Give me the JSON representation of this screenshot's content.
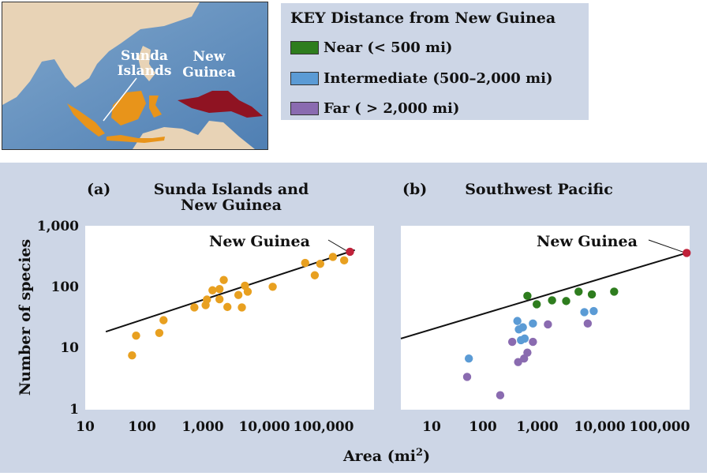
{
  "map": {
    "label_sunda": [
      "Sunda",
      "Islands"
    ],
    "label_newguinea": [
      "New",
      "Guinea"
    ]
  },
  "key": {
    "title": "KEY  Distance from New Guinea",
    "items": [
      {
        "label": "Near (< 500 mi)",
        "color": "#2e7d1e"
      },
      {
        "label": "Intermediate (500–2,000 mi)",
        "color": "#5b9bd5"
      },
      {
        "label": "Far ( > 2,000 mi)",
        "color": "#8a6bb0"
      }
    ]
  },
  "chart_data": [
    {
      "type": "scatter",
      "panel_letter": "(a)",
      "title": [
        "Sunda Islands and",
        "New Guinea"
      ],
      "xscale": "log",
      "yscale": "log",
      "xlim": [
        10,
        300000
      ],
      "ylim": [
        1,
        1000
      ],
      "x_ticks": [
        "10",
        "100",
        "1,000",
        "10,000",
        "100,000"
      ],
      "y_ticks": [
        "1",
        "10",
        "100",
        "1,000"
      ],
      "annotation": "New Guinea",
      "points_color": "#e8a020",
      "highlight_color": "#c0223a",
      "fit_line": [
        [
          22,
          22
        ],
        [
          300000,
          480
        ]
      ],
      "points": [
        [
          60,
          9
        ],
        [
          70,
          19
        ],
        [
          170,
          21
        ],
        [
          200,
          34
        ],
        [
          650,
          55
        ],
        [
          1000,
          60
        ],
        [
          1050,
          74
        ],
        [
          1300,
          105
        ],
        [
          1700,
          110
        ],
        [
          1700,
          75
        ],
        [
          2000,
          155
        ],
        [
          2300,
          56
        ],
        [
          3500,
          88
        ],
        [
          4000,
          55
        ],
        [
          4500,
          125
        ],
        [
          5000,
          100
        ],
        [
          13000,
          120
        ],
        [
          45000,
          295
        ],
        [
          65000,
          185
        ],
        [
          80000,
          285
        ],
        [
          130000,
          370
        ],
        [
          200000,
          325
        ],
        [
          250000,
          450
        ]
      ]
    },
    {
      "type": "scatter",
      "panel_letter": "(b)",
      "title": [
        "Southwest Pacific"
      ],
      "xscale": "log",
      "yscale": "log",
      "xlim": [
        10,
        300000
      ],
      "ylim": [
        1,
        1000
      ],
      "x_ticks": [
        "10",
        "100",
        "1,000",
        "10,000",
        "100,000"
      ],
      "annotation": "New Guinea",
      "fit_line": [
        [
          10,
          17
        ],
        [
          300000,
          430
        ]
      ],
      "highlight": {
        "x": 300000,
        "y": 430,
        "color": "#c0223a"
      },
      "series": [
        {
          "name": "Near (< 500 mi)",
          "color": "#2e7d1e",
          "points": [
            [
              480,
              85
            ],
            [
              700,
              62
            ],
            [
              1300,
              72
            ],
            [
              2300,
              70
            ],
            [
              3800,
              100
            ],
            [
              6500,
              90
            ],
            [
              16000,
              100
            ]
          ]
        },
        {
          "name": "Intermediate (500–2,000 mi)",
          "color": "#5b9bd5",
          "points": [
            [
              45,
              8
            ],
            [
              320,
              33
            ],
            [
              340,
              24
            ],
            [
              370,
              16
            ],
            [
              400,
              26
            ],
            [
              430,
              17
            ],
            [
              600,
              30
            ],
            [
              4800,
              46
            ],
            [
              7000,
              48
            ]
          ]
        },
        {
          "name": "Far ( > 2,000 mi)",
          "color": "#8a6bb0",
          "points": [
            [
              42,
              4
            ],
            [
              160,
              2
            ],
            [
              260,
              15
            ],
            [
              330,
              7
            ],
            [
              420,
              8
            ],
            [
              480,
              10
            ],
            [
              600,
              15
            ],
            [
              1100,
              29
            ],
            [
              5500,
              30
            ]
          ]
        }
      ]
    }
  ],
  "axes": {
    "ylabel": "Number of species",
    "xlabel": "Area (mi",
    "xlabel_sup": "2",
    "xlabel_close": ")"
  }
}
